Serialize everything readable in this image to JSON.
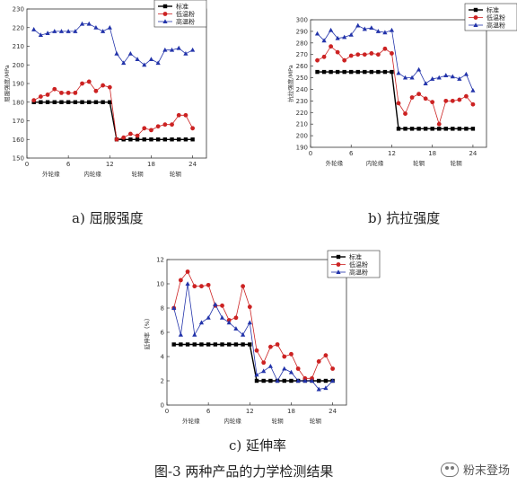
{
  "figure_caption": "图-3 两种产品的力学检测结果",
  "watermark": "粉末登场",
  "chart_data": [
    {
      "type": "line",
      "caption": "a) 屈服强度",
      "ylabel": "屈服强度/MPa",
      "xlim": [
        0,
        26
      ],
      "ylim": [
        150,
        230
      ],
      "xticks": [
        0,
        6,
        12,
        18,
        24
      ],
      "yticks": [
        150,
        160,
        170,
        180,
        190,
        200,
        210,
        220,
        230
      ],
      "x_groups": [
        "外轮缘",
        "内轮缘",
        "轮辋",
        "轮辋"
      ],
      "legend_position": "top-right",
      "x": [
        1,
        2,
        3,
        4,
        5,
        6,
        7,
        8,
        9,
        10,
        11,
        12,
        13,
        14,
        15,
        16,
        17,
        18,
        19,
        20,
        21,
        22,
        23,
        24
      ],
      "series": [
        {
          "name": "标准",
          "color": "#000000",
          "marker": "square",
          "values": [
            180,
            180,
            180,
            180,
            180,
            180,
            180,
            180,
            180,
            180,
            180,
            180,
            160,
            160,
            160,
            160,
            160,
            160,
            160,
            160,
            160,
            160,
            160,
            160
          ]
        },
        {
          "name": "低温粉",
          "color": "#cc2222",
          "marker": "circle",
          "values": [
            181,
            183,
            184,
            187,
            185,
            185,
            185,
            190,
            191,
            186,
            189,
            188,
            160,
            161,
            163,
            162,
            166,
            165,
            167,
            168,
            168,
            173,
            173,
            166
          ]
        },
        {
          "name": "高温粉",
          "color": "#2233aa",
          "marker": "triangle",
          "values": [
            219,
            216,
            217,
            218,
            218,
            218,
            218,
            222,
            222,
            220,
            218,
            220,
            206,
            201,
            206,
            203,
            200,
            203,
            201,
            208,
            208,
            209,
            206,
            208
          ]
        }
      ]
    },
    {
      "type": "line",
      "caption": "b) 抗拉强度",
      "ylabel": "抗拉强度/MPa",
      "xlim": [
        0,
        26
      ],
      "ylim": [
        190,
        300
      ],
      "xticks": [
        0,
        6,
        12,
        18,
        24
      ],
      "yticks": [
        190,
        200,
        210,
        220,
        230,
        240,
        250,
        260,
        270,
        280,
        290,
        300
      ],
      "x_groups": [
        "外轮缘",
        "内轮缘",
        "轮辋",
        "轮辋"
      ],
      "legend_position": "top-right",
      "x": [
        1,
        2,
        3,
        4,
        5,
        6,
        7,
        8,
        9,
        10,
        11,
        12,
        13,
        14,
        15,
        16,
        17,
        18,
        19,
        20,
        21,
        22,
        23,
        24
      ],
      "series": [
        {
          "name": "标准",
          "color": "#000000",
          "marker": "square",
          "values": [
            255,
            255,
            255,
            255,
            255,
            255,
            255,
            255,
            255,
            255,
            255,
            255,
            206,
            206,
            206,
            206,
            206,
            206,
            206,
            206,
            206,
            206,
            206,
            206
          ]
        },
        {
          "name": "低温粉",
          "color": "#cc2222",
          "marker": "circle",
          "values": [
            265,
            268,
            277,
            272,
            265,
            269,
            270,
            270,
            271,
            270,
            275,
            271,
            228,
            219,
            233,
            236,
            232,
            229,
            210,
            230,
            230,
            231,
            234,
            227
          ]
        },
        {
          "name": "高温粉",
          "color": "#2233aa",
          "marker": "triangle",
          "values": [
            288,
            282,
            291,
            284,
            285,
            287,
            295,
            292,
            293,
            290,
            289,
            291,
            254,
            250,
            250,
            257,
            245,
            249,
            250,
            252,
            251,
            249,
            253,
            239
          ]
        }
      ]
    },
    {
      "type": "line",
      "caption": "c) 延伸率",
      "ylabel": "延伸率（%）",
      "xlim": [
        0,
        26
      ],
      "ylim": [
        0,
        12
      ],
      "xticks": [
        0,
        6,
        12,
        18,
        24
      ],
      "yticks": [
        0,
        2,
        4,
        6,
        8,
        10,
        12
      ],
      "x_groups": [
        "外轮缘",
        "内轮缘",
        "轮辋",
        "轮辋"
      ],
      "legend_position": "top-right",
      "x": [
        1,
        2,
        3,
        4,
        5,
        6,
        7,
        8,
        9,
        10,
        11,
        12,
        13,
        14,
        15,
        16,
        17,
        18,
        19,
        20,
        21,
        22,
        23,
        24
      ],
      "series": [
        {
          "name": "标准",
          "color": "#000000",
          "marker": "square",
          "values": [
            5,
            5,
            5,
            5,
            5,
            5,
            5,
            5,
            5,
            5,
            5,
            5,
            2,
            2,
            2,
            2,
            2,
            2,
            2,
            2,
            2,
            2,
            2,
            2
          ]
        },
        {
          "name": "低温粉",
          "color": "#cc2222",
          "marker": "circle",
          "values": [
            8.0,
            10.3,
            11.0,
            9.8,
            9.8,
            9.9,
            8.2,
            8.2,
            7.0,
            7.2,
            9.8,
            8.1,
            4.5,
            3.5,
            4.8,
            5.0,
            4.0,
            4.2,
            3.0,
            2.2,
            2.2,
            3.6,
            4.1,
            3.0
          ]
        },
        {
          "name": "高温粉",
          "color": "#2233aa",
          "marker": "triangle",
          "values": [
            8.0,
            5.8,
            10.0,
            5.8,
            6.8,
            7.2,
            8.3,
            7.2,
            6.8,
            6.3,
            5.8,
            6.8,
            2.5,
            2.8,
            3.2,
            2.0,
            3.0,
            2.7,
            2.0,
            2.0,
            2.0,
            1.3,
            1.4,
            2.0
          ]
        }
      ]
    }
  ]
}
